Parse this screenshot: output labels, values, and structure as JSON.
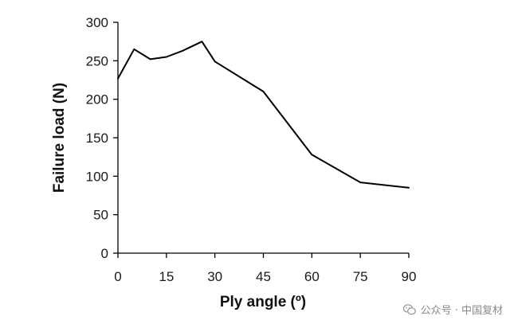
{
  "chart_data": {
    "type": "line",
    "title": "",
    "xlabel": "Ply angle (º)",
    "ylabel": "Failure load (N)",
    "xlim": [
      0,
      90
    ],
    "ylim": [
      0,
      300
    ],
    "xticks": [
      0,
      15,
      30,
      45,
      60,
      75,
      90
    ],
    "yticks": [
      0,
      50,
      100,
      150,
      200,
      250,
      300
    ],
    "grid": false,
    "legend": "none",
    "series": [
      {
        "color": "#000000",
        "x": [
          0,
          5,
          10,
          15,
          20,
          26,
          30,
          45,
          60,
          75,
          90
        ],
        "y": [
          227,
          265,
          252,
          255,
          263,
          275,
          249,
          210,
          128,
          92,
          85
        ]
      }
    ]
  },
  "watermark": {
    "icon": "wechat-icon",
    "text": "公众号 · 中国复材"
  }
}
